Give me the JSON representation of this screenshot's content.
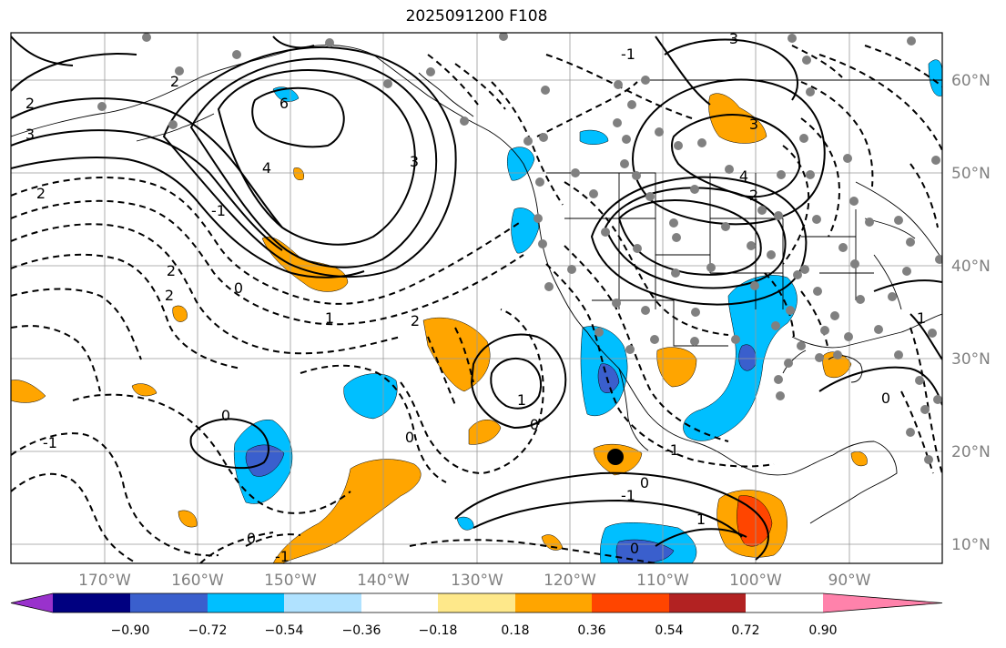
{
  "title": "2025091200 F108",
  "lon_labels": [
    "170°W",
    "160°W",
    "150°W",
    "140°W",
    "130°W",
    "120°W",
    "110°W",
    "100°W",
    "90°W"
  ],
  "lat_labels": [
    "60°N",
    "50°N",
    "40°N",
    "30°N",
    "20°N",
    "10°N"
  ],
  "colorbar": {
    "colors": [
      "#9932cc",
      "#000080",
      "#3a5fcd",
      "#00bfff",
      "#b0e2ff",
      "#ffffff",
      "#fee88a",
      "#ffa500",
      "#ff4500",
      "#b22222",
      "#ff82ab"
    ],
    "tick_labels": [
      "−0.90",
      "−0.72",
      "−0.54",
      "−0.36",
      "−0.18",
      "0.18",
      "0.36",
      "0.54",
      "0.72",
      "0.90"
    ]
  },
  "contour_labels": {
    "c1": "2",
    "c2": "2",
    "c3": "6",
    "c4": "3",
    "c5": "2",
    "c6": "4",
    "c7": "3",
    "c8": "-1",
    "c9": "2",
    "c10": "2",
    "c11": "0",
    "c12": "1",
    "c13": "2",
    "c14": "3",
    "c15": "4",
    "c16": "2",
    "c17": "3",
    "c18": "-1",
    "c19": "0",
    "c20": "-1",
    "c21": "0",
    "c22": "0",
    "c23": "1",
    "c24": "-1",
    "c25": "0",
    "c26": "1",
    "c27": "-1",
    "c28": "0",
    "c29": "-1",
    "c30": "0",
    "c31": "1",
    "c32": "0"
  }
}
